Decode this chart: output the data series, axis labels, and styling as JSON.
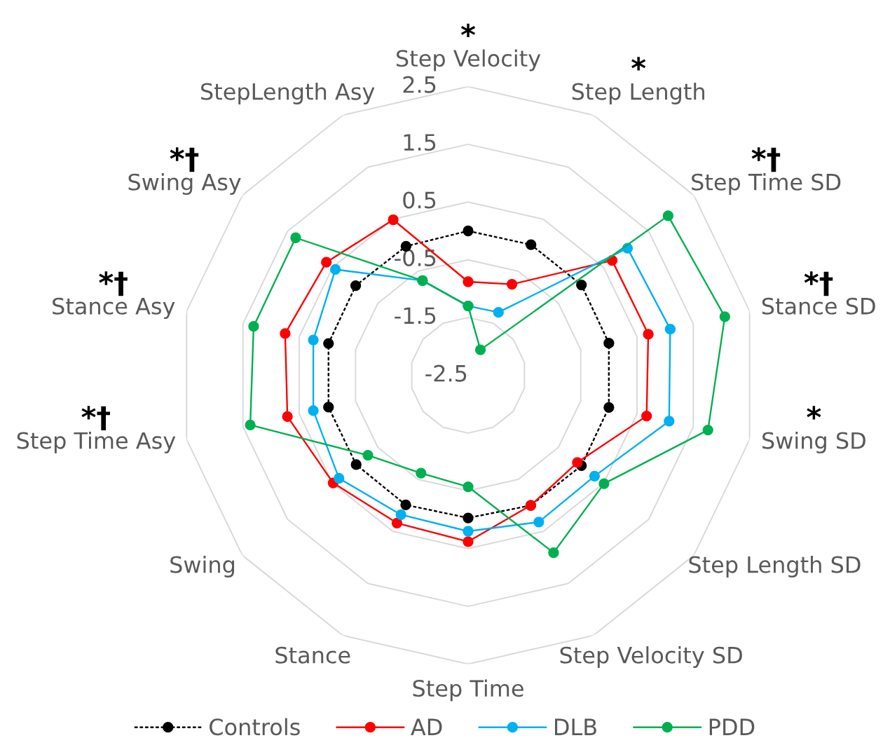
{
  "chart_data": {
    "type": "radar",
    "categories": [
      "Step Velocity",
      "Step Length",
      "Step Time SD",
      "Stance SD",
      "Swing SD",
      "Step Length SD",
      "Step Velocity SD",
      "Step Time",
      "Stance",
      "Swing",
      "Step Time Asy",
      "Stance Asy",
      "Swing Asy",
      "StepLength Asy"
    ],
    "series": [
      {
        "name": "Controls",
        "color": "#000000",
        "line_style": "dashed",
        "values": [
          0.0,
          0.01,
          0.01,
          0.0,
          0.0,
          0.01,
          0.0,
          -0.03,
          -0.01,
          -0.02,
          -0.02,
          -0.02,
          -0.01,
          -0.02
        ]
      },
      {
        "name": "AD",
        "color": "#ff0000",
        "line_style": "solid",
        "values": [
          -0.88,
          -0.75,
          0.69,
          0.7,
          0.67,
          -0.08,
          0.0,
          0.38,
          0.34,
          0.49,
          0.71,
          0.75,
          0.64,
          0.49
        ]
      },
      {
        "name": "DLB",
        "color": "#00b0f0",
        "line_style": "solid",
        "values": [
          -1.3,
          -1.29,
          1.03,
          1.09,
          1.07,
          0.3,
          0.32,
          0.2,
          0.18,
          0.36,
          0.25,
          0.25,
          0.44,
          -0.68
        ]
      },
      {
        "name": "PDD",
        "color": "#00b050",
        "line_style": "solid",
        "values": [
          -1.3,
          -2.01,
          1.93,
          2.06,
          1.76,
          0.51,
          0.91,
          -0.57,
          -0.62,
          -0.28,
          1.37,
          1.31,
          1.32,
          -0.68
        ]
      }
    ],
    "ylim": [
      -2.5,
      2.5
    ],
    "yticks": [
      -2.5,
      -1.5,
      -0.5,
      0.5,
      1.5,
      2.5
    ],
    "grid": true,
    "legend": "bottom",
    "marker": "circle",
    "annotations": [
      {
        "text": "*",
        "x": "Step Velocity"
      },
      {
        "text": "*",
        "x": "Step Length"
      },
      {
        "text": "*†",
        "x": "Step Time SD"
      },
      {
        "text": "*†",
        "x": "Stance SD"
      },
      {
        "text": "*",
        "x": "Swing SD"
      },
      {
        "text": "*†",
        "x": "Step Time Asy"
      },
      {
        "text": "*†",
        "x": "Stance Asy"
      },
      {
        "text": "*†",
        "x": "Swing Asy"
      }
    ]
  }
}
